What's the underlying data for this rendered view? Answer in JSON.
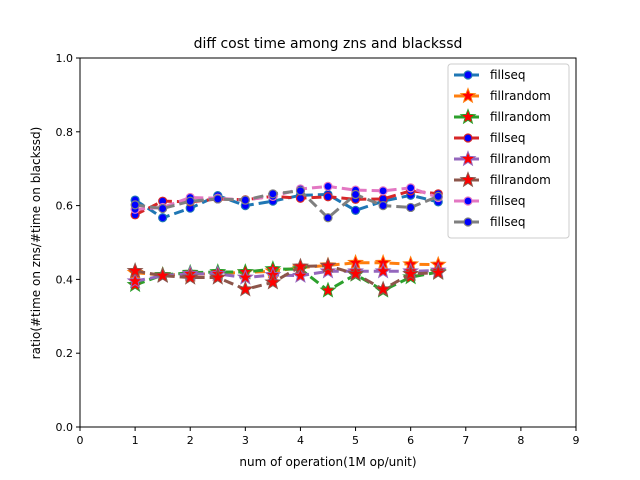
{
  "chart_data": {
    "type": "line",
    "title": "diff cost time among zns and blackssd",
    "xlabel": "num of operation(1M op/unit)",
    "ylabel": "ratio(#time on zns/#time on blackssd)",
    "xlim": [
      0,
      9
    ],
    "ylim": [
      0.0,
      1.0
    ],
    "xticks": [
      "0",
      "1",
      "2",
      "3",
      "4",
      "5",
      "6",
      "7",
      "8",
      "9"
    ],
    "yticks": [
      "0.0",
      "0.2",
      "0.4",
      "0.6",
      "0.8",
      "1.0"
    ],
    "grid": false,
    "legend_position": "top-right",
    "x": [
      1,
      1.5,
      2,
      2.5,
      3,
      3.5,
      4,
      4.5,
      5,
      5.5,
      6,
      6.5
    ],
    "series": [
      {
        "name": "fillseq",
        "color": "#1f77b4",
        "marker": "circle",
        "values": [
          0.615,
          0.567,
          0.593,
          0.627,
          0.6,
          0.612,
          0.628,
          0.63,
          0.587,
          0.612,
          0.628,
          0.61
        ]
      },
      {
        "name": "fillrandom",
        "color": "#ff7f0e",
        "marker": "star",
        "values": [
          0.418,
          0.412,
          0.413,
          0.416,
          0.419,
          0.422,
          0.432,
          0.438,
          0.445,
          0.445,
          0.441,
          0.44
        ]
      },
      {
        "name": "fillrandom",
        "color": "#2ca02c",
        "marker": "star",
        "values": [
          0.385,
          0.412,
          0.418,
          0.42,
          0.42,
          0.428,
          0.428,
          0.37,
          0.413,
          0.37,
          0.406,
          0.42
        ]
      },
      {
        "name": "fillseq",
        "color": "#d62728",
        "marker": "circle",
        "values": [
          0.575,
          0.612,
          0.61,
          0.618,
          0.616,
          0.625,
          0.62,
          0.624,
          0.617,
          0.618,
          0.64,
          0.632
        ]
      },
      {
        "name": "fillrandom",
        "color": "#9467bd",
        "marker": "star",
        "values": [
          0.395,
          0.41,
          0.415,
          0.415,
          0.405,
          0.412,
          0.41,
          0.422,
          0.422,
          0.422,
          0.422,
          0.424
        ]
      },
      {
        "name": "fillrandom",
        "color": "#8c564b",
        "marker": "star",
        "values": [
          0.423,
          0.41,
          0.405,
          0.405,
          0.373,
          0.392,
          0.435,
          0.437,
          0.415,
          0.373,
          0.415,
          0.418
        ]
      },
      {
        "name": "fillseq",
        "color": "#e377c2",
        "marker": "circle",
        "values": [
          0.59,
          0.595,
          0.622,
          0.62,
          0.615,
          0.625,
          0.645,
          0.652,
          0.642,
          0.64,
          0.648,
          0.622
        ]
      },
      {
        "name": "fillseq",
        "color": "#7f7f7f",
        "marker": "circle",
        "values": [
          0.602,
          0.592,
          0.612,
          0.618,
          0.615,
          0.632,
          0.64,
          0.567,
          0.63,
          0.6,
          0.595,
          0.625
        ]
      }
    ]
  }
}
